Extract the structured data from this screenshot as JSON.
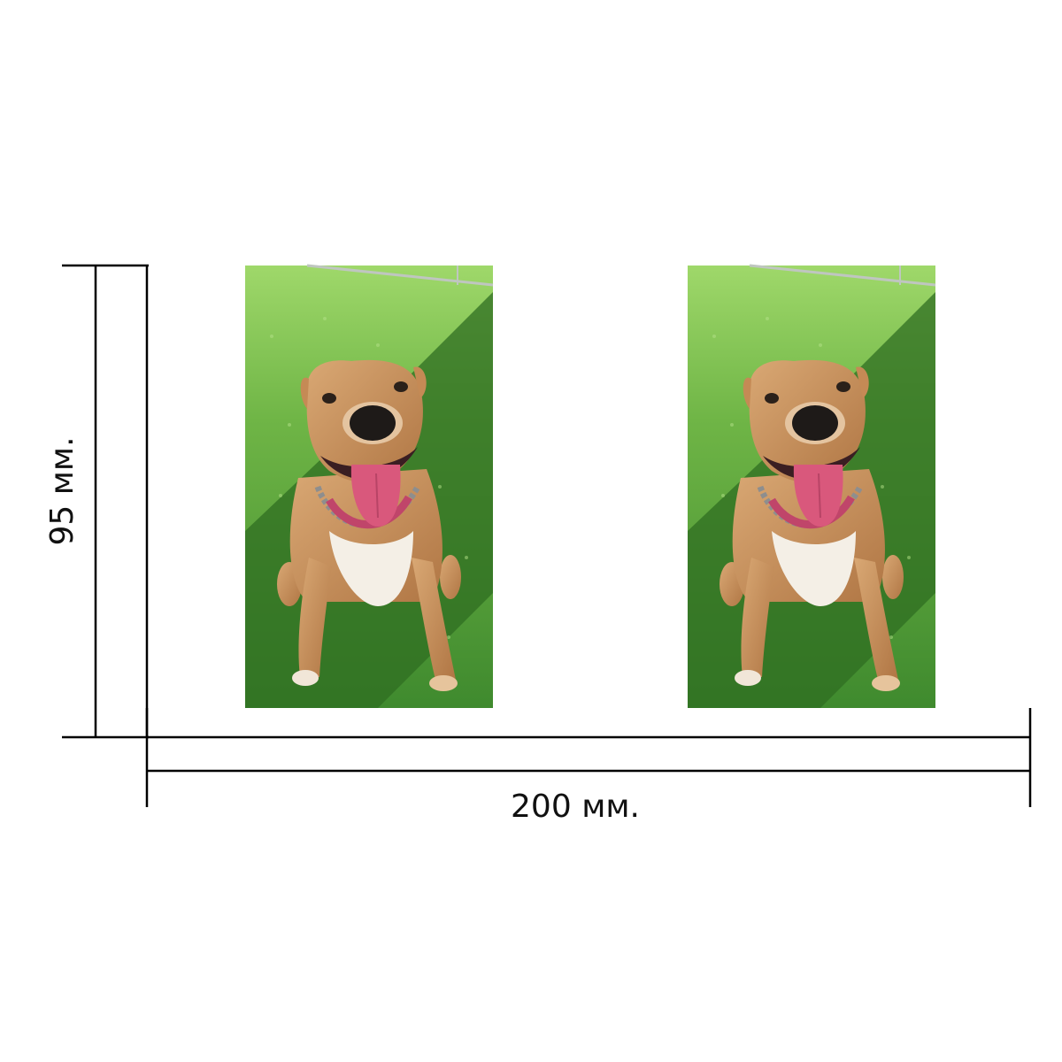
{
  "dimensions": {
    "height_label": "95 мм.",
    "width_label": "200 мм."
  },
  "photos": [
    {
      "subject": "dog-on-grass-photo"
    },
    {
      "subject": "dog-on-grass-photo"
    }
  ],
  "colors": {
    "background": "#ffffff",
    "dimension_line": "#000000",
    "grass_light": "#8fce5a",
    "grass_dark": "#2f6e22",
    "dog_fur": "#c8915e",
    "dog_chest": "#f4efe6",
    "tongue": "#d9587c",
    "collar": "#c0456a"
  }
}
